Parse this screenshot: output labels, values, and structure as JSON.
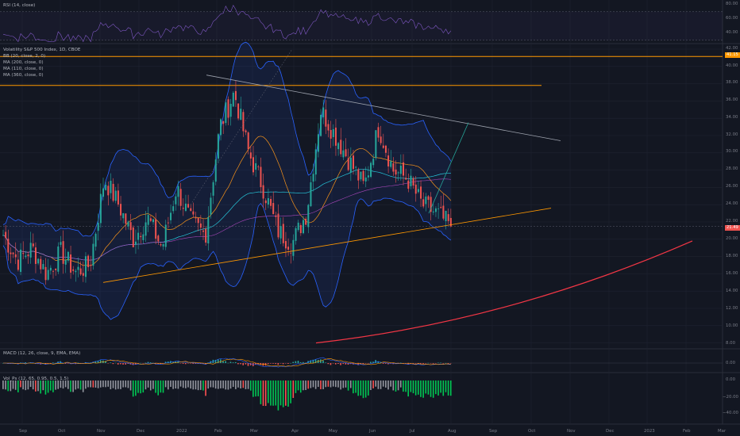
{
  "colors": {
    "background": "#131722",
    "grid": "#1f2331",
    "bull": "#26a69a",
    "bear": "#ef5350",
    "bb_band": "#2962ff",
    "bb_basis": "#f7931a",
    "orange": "#ff9800",
    "trend_gray": "#9ea3ae",
    "rsi": "#7e57c2",
    "price_badge": "#ef5350",
    "level_badge": "#ff9800",
    "hist_pos": "#00c853",
    "hist_neg": "#9598a1",
    "hist_red": "#ff5252"
  },
  "panes": {
    "rsi": {
      "label": "RSI (14, close)",
      "ticks": [
        "80.00",
        "60.00",
        "40.00"
      ]
    },
    "main": {
      "legend": [
        "Volatility S&P 500 Index, 1D, CBOE",
        "BB (20, close, 2, 0)",
        "MA (200, close, 0)",
        "MA (110, close, 0)",
        "MA (360, close, 0)"
      ],
      "ticks": [
        "42.00",
        "40.00",
        "38.00",
        "36.00",
        "34.00",
        "32.00",
        "30.00",
        "28.00",
        "26.00",
        "24.00",
        "22.00",
        "20.00",
        "18.00",
        "16.00",
        "14.00",
        "12.00",
        "10.00",
        "8.00"
      ],
      "price_badge": "21.49",
      "level_badge": "41.15"
    },
    "macd": {
      "label": "MACD (12, 26, close, 9, EMA, EMA)",
      "ticks": [
        "0.00"
      ]
    },
    "osc": {
      "label": "Vol_Ps (12, 65, 0.95, 0.5, 1.5)",
      "ticks": [
        "0.00",
        "−20.00",
        "−40.00"
      ]
    }
  },
  "x_axis": [
    "Sep",
    "Oct",
    "Nov",
    "Dec",
    "2022",
    "Feb",
    "Mar",
    "Apr",
    "May",
    "Jun",
    "Jul",
    "Aug",
    "Sep",
    "Oct",
    "Nov",
    "Dec",
    "2023",
    "Feb",
    "Mar"
  ],
  "chart_data": {
    "type": "candlestick",
    "title": "Volatility S&P 500 Index, 1D, CBOE",
    "ylim": [
      7,
      43
    ],
    "y_scale": "linear",
    "horizontal_levels": [
      41.15,
      37.8
    ],
    "last_price": 21.49,
    "grid": true,
    "series_key_points": [
      {
        "date": "2021-09",
        "close": 18.5
      },
      {
        "date": "2021-10",
        "close": 17.0
      },
      {
        "date": "2021-11",
        "close": 16.5
      },
      {
        "date": "2021-12",
        "close": 27.5
      },
      {
        "date": "2022-01",
        "close": 22.0
      },
      {
        "date": "2022-02",
        "close": 30.0
      },
      {
        "date": "2022-03",
        "close": 36.5
      },
      {
        "date": "2022-04",
        "close": 20.0
      },
      {
        "date": "2022-05",
        "close": 34.0
      },
      {
        "date": "2022-06",
        "close": 27.0
      },
      {
        "date": "2022-07",
        "close": 24.0
      },
      {
        "date": "2022-08",
        "close": 21.49
      }
    ]
  }
}
